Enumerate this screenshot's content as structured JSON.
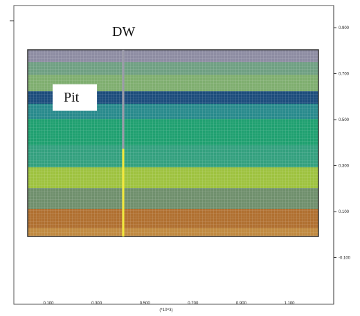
{
  "plot": {
    "labels": {
      "well": "DW",
      "pit": "Pit"
    },
    "right_axis": {
      "ticks": [
        "0.900",
        "0.700",
        "0.500",
        "0.300",
        "0.100",
        "-0.100"
      ]
    },
    "bottom_axis": {
      "ticks": [
        "0.100",
        "0.300",
        "0.500",
        "0.700",
        "0.900",
        "1.100"
      ],
      "unit": "(*10^3)"
    }
  }
}
